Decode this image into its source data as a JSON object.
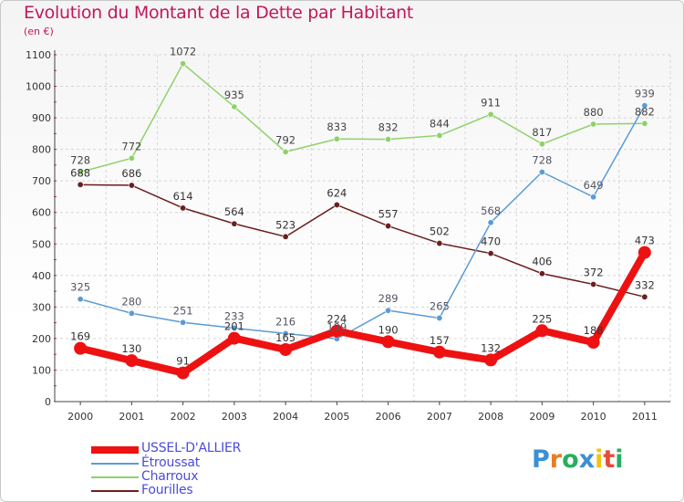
{
  "title": "Evolution du Montant de la Dette par Habitant",
  "unit_label": "(en €)",
  "logo_text": "Proxiti",
  "logo_colors": [
    "#3b8fd6",
    "#e67e22",
    "#27ae60",
    "#3b8fd6",
    "#f1c40f",
    "#e74c3c",
    "#27ae60"
  ],
  "chart_data": {
    "type": "line",
    "x": [
      "2000",
      "2001",
      "2002",
      "2003",
      "2004",
      "2005",
      "2006",
      "2007",
      "2008",
      "2009",
      "2010",
      "2011"
    ],
    "ylim": [
      0,
      1100
    ],
    "yticks": [
      0,
      100,
      200,
      300,
      400,
      500,
      600,
      700,
      800,
      900,
      1000,
      1100
    ],
    "grid": true,
    "legend_position": "bottom-left",
    "series": [
      {
        "name": "USSEL-D'ALLIER",
        "color": "#ee1111",
        "values": [
          169,
          130,
          91,
          201,
          165,
          224,
          190,
          157,
          132,
          225,
          188,
          473
        ]
      },
      {
        "name": "Étroussat",
        "color": "#5b9bd5",
        "values": [
          325,
          280,
          251,
          233,
          216,
          199,
          289,
          265,
          568,
          728,
          649,
          939
        ]
      },
      {
        "name": "Charroux",
        "color": "#8fd16a",
        "values": [
          728,
          772,
          1072,
          935,
          792,
          833,
          832,
          844,
          911,
          817,
          880,
          882
        ]
      },
      {
        "name": "Fourilles",
        "color": "#6b1f1f",
        "values": [
          688,
          686,
          614,
          564,
          523,
          624,
          557,
          502,
          470,
          406,
          372,
          332
        ]
      }
    ],
    "data_labels": [
      [
        "169",
        "130",
        "91",
        "201",
        "165",
        "224",
        "190",
        "157",
        "132",
        "225",
        "188",
        "473"
      ],
      [
        "325",
        "280",
        "251",
        "233",
        "216",
        "199",
        "289",
        "265",
        "568",
        "728",
        "649",
        "939"
      ],
      [
        "728",
        "772",
        "1072",
        "935",
        "792",
        "833",
        "832",
        "844",
        "911",
        "817",
        "880",
        "882"
      ],
      [
        "688",
        "686",
        "614",
        "564",
        "523",
        "624",
        "557",
        "502",
        "470",
        "406",
        "372",
        "332"
      ]
    ]
  }
}
